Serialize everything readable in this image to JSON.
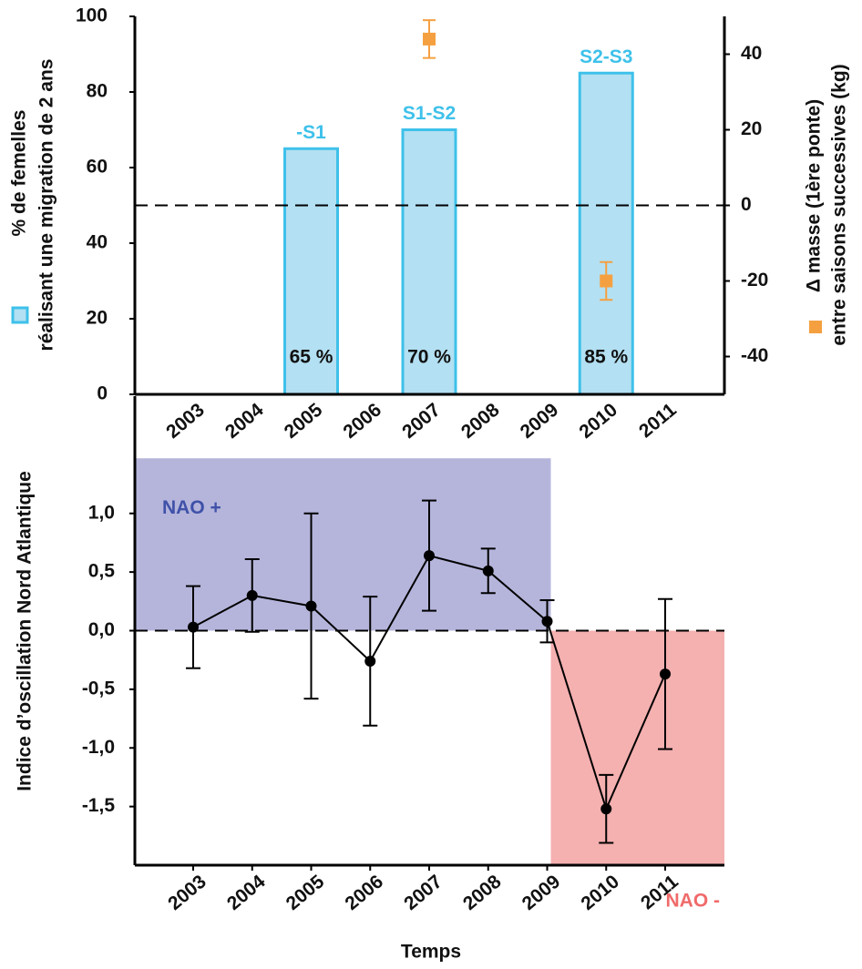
{
  "chart_data": [
    {
      "type": "bar",
      "categories": [
        "2003",
        "2004",
        "2005",
        "2006",
        "2007",
        "2008",
        "2009",
        "2010",
        "2011"
      ],
      "ylabel": [
        "% de femelles",
        "réalisant une migration de 2 ans"
      ],
      "y2label": [
        "Δ masse (1ère ponte)",
        "entre saisons successives (kg)"
      ],
      "ylim": [
        0,
        100
      ],
      "yticks": [
        0,
        20,
        40,
        60,
        80,
        100
      ],
      "y2lim": [
        -50,
        50
      ],
      "y2ticks": [
        -40,
        -20,
        0,
        20,
        40
      ],
      "hline_y2": 0,
      "series": [
        {
          "type": "bar",
          "color": "#b3e0f2",
          "edgecolor": "#3ec1ea",
          "values": [
            null,
            null,
            65,
            null,
            70,
            null,
            null,
            85,
            null
          ],
          "value_labels": [
            null,
            null,
            "65 %",
            null,
            "70 %",
            null,
            null,
            "85 %",
            null
          ],
          "bar_labels": [
            null,
            null,
            "-S1",
            null,
            "S1-S2",
            null,
            null,
            "S2-S3",
            null
          ]
        },
        {
          "type": "errorbar",
          "axis": "y2",
          "color": "#f5a040",
          "values": [
            null,
            null,
            null,
            null,
            44,
            null,
            null,
            -20,
            null
          ],
          "errors": [
            null,
            null,
            null,
            null,
            5,
            null,
            null,
            5,
            null
          ]
        }
      ]
    },
    {
      "type": "line",
      "categories": [
        "2003",
        "2004",
        "2005",
        "2006",
        "2007",
        "2008",
        "2009",
        "2010",
        "2011"
      ],
      "xlabel": "Temps",
      "ylabel": "Indice d’oscillation Nord Atlantique",
      "ylim": [
        -2,
        2
      ],
      "yticks": [
        {
          "value": -1.5,
          "label": "-1,5"
        },
        {
          "value": -1,
          "label": "-1,0"
        },
        {
          "value": -0.5,
          "label": "-0,5"
        },
        {
          "value": 0,
          "label": "0,0"
        },
        {
          "value": 0.5,
          "label": "0,5"
        },
        {
          "value": 1,
          "label": "1,0"
        }
      ],
      "hline": 0,
      "regions": [
        {
          "label": "NAO +",
          "color": "#b5b5dc",
          "label_color": "#3f51a8",
          "x_end": "2009",
          "y": [
            0,
            1.47
          ]
        },
        {
          "label": "NAO -",
          "color": "#f5b0b0",
          "label_color": "#f06a6a",
          "x_start": "2009",
          "y": [
            -2,
            0
          ]
        }
      ],
      "series": [
        {
          "color": "#000000",
          "values": [
            0.03,
            0.3,
            0.21,
            -0.26,
            0.64,
            0.51,
            0.08,
            -1.52,
            -0.37
          ],
          "errors": [
            0.35,
            0.31,
            0.79,
            0.55,
            0.47,
            0.19,
            0.18,
            0.29,
            0.64
          ]
        }
      ]
    }
  ]
}
